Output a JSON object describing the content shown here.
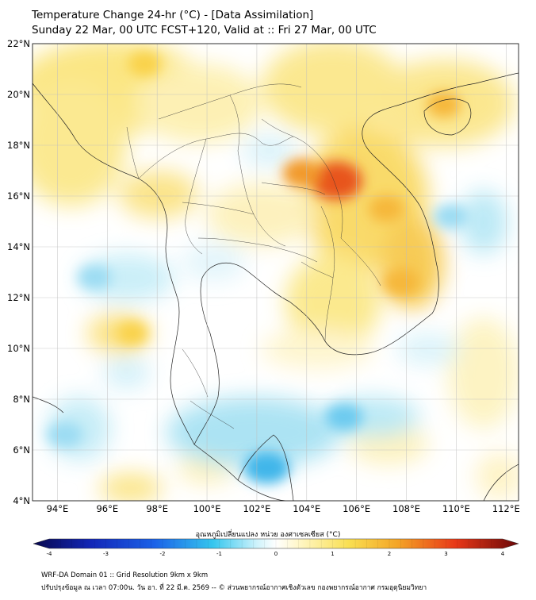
{
  "header": {
    "title_line1": "Temperature Change 24-hr (°C) - [Data Assimilation]",
    "title_line2": "Sunday 22 Mar, 00 UTC FCST+120, Valid at :: Fri 27 Mar, 00 UTC"
  },
  "map": {
    "lat_labels": [
      "22°N",
      "20°N",
      "18°N",
      "16°N",
      "14°N",
      "12°N",
      "10°N",
      "8°N",
      "6°N",
      "4°N"
    ],
    "lon_labels": [
      "94°E",
      "96°E",
      "98°E",
      "100°E",
      "102°E",
      "104°E",
      "106°E",
      "108°E",
      "110°E",
      "112°E"
    ],
    "lat_range": [
      4,
      22
    ],
    "lon_range": [
      93,
      112.5
    ],
    "warm_spots": [
      {
        "lon": 105.2,
        "lat": 16.6,
        "value": 2.8
      },
      {
        "lon": 103.8,
        "lat": 16.9,
        "value": 1.8
      },
      {
        "lon": 107.8,
        "lat": 12.6,
        "value": 1.7
      },
      {
        "lon": 97.5,
        "lat": 21.2,
        "value": 1.4
      },
      {
        "lon": 109.5,
        "lat": 19.6,
        "value": 1.5
      },
      {
        "lon": 97.0,
        "lat": 10.6,
        "value": 1.2
      },
      {
        "lon": 107.2,
        "lat": 15.5,
        "value": 1.6
      }
    ],
    "cool_spots": [
      {
        "lon": 102.4,
        "lat": 5.3,
        "value": -1.4
      },
      {
        "lon": 105.5,
        "lat": 7.3,
        "value": -1.0
      },
      {
        "lon": 95.5,
        "lat": 12.8,
        "value": -0.8
      },
      {
        "lon": 109.8,
        "lat": 15.2,
        "value": -0.9
      },
      {
        "lon": 94.3,
        "lat": 6.6,
        "value": -0.9
      }
    ]
  },
  "colorbar": {
    "title": "อุณหภูมิเปลี่ยนแปลง หน่วย องศาเซลเซียส (°C)",
    "labels": [
      "-4",
      "-3",
      "-2",
      "-1",
      "0",
      "1",
      "2",
      "3",
      "4"
    ],
    "min": -4,
    "max": 4
  },
  "footer": {
    "line1": "WRF-DA Domain 01 :: Grid Resolution 9km x 9km",
    "line2": "ปรับปรุงข้อมูล ณ เวลา 07:00น. วัน อา. ที่ 22 มี.ค. 2569 -- © ส่วนพยากรณ์อากาศเชิงตัวเลข กองพยากรณ์อากาศ กรมอุตุนิยมวิทยา"
  }
}
